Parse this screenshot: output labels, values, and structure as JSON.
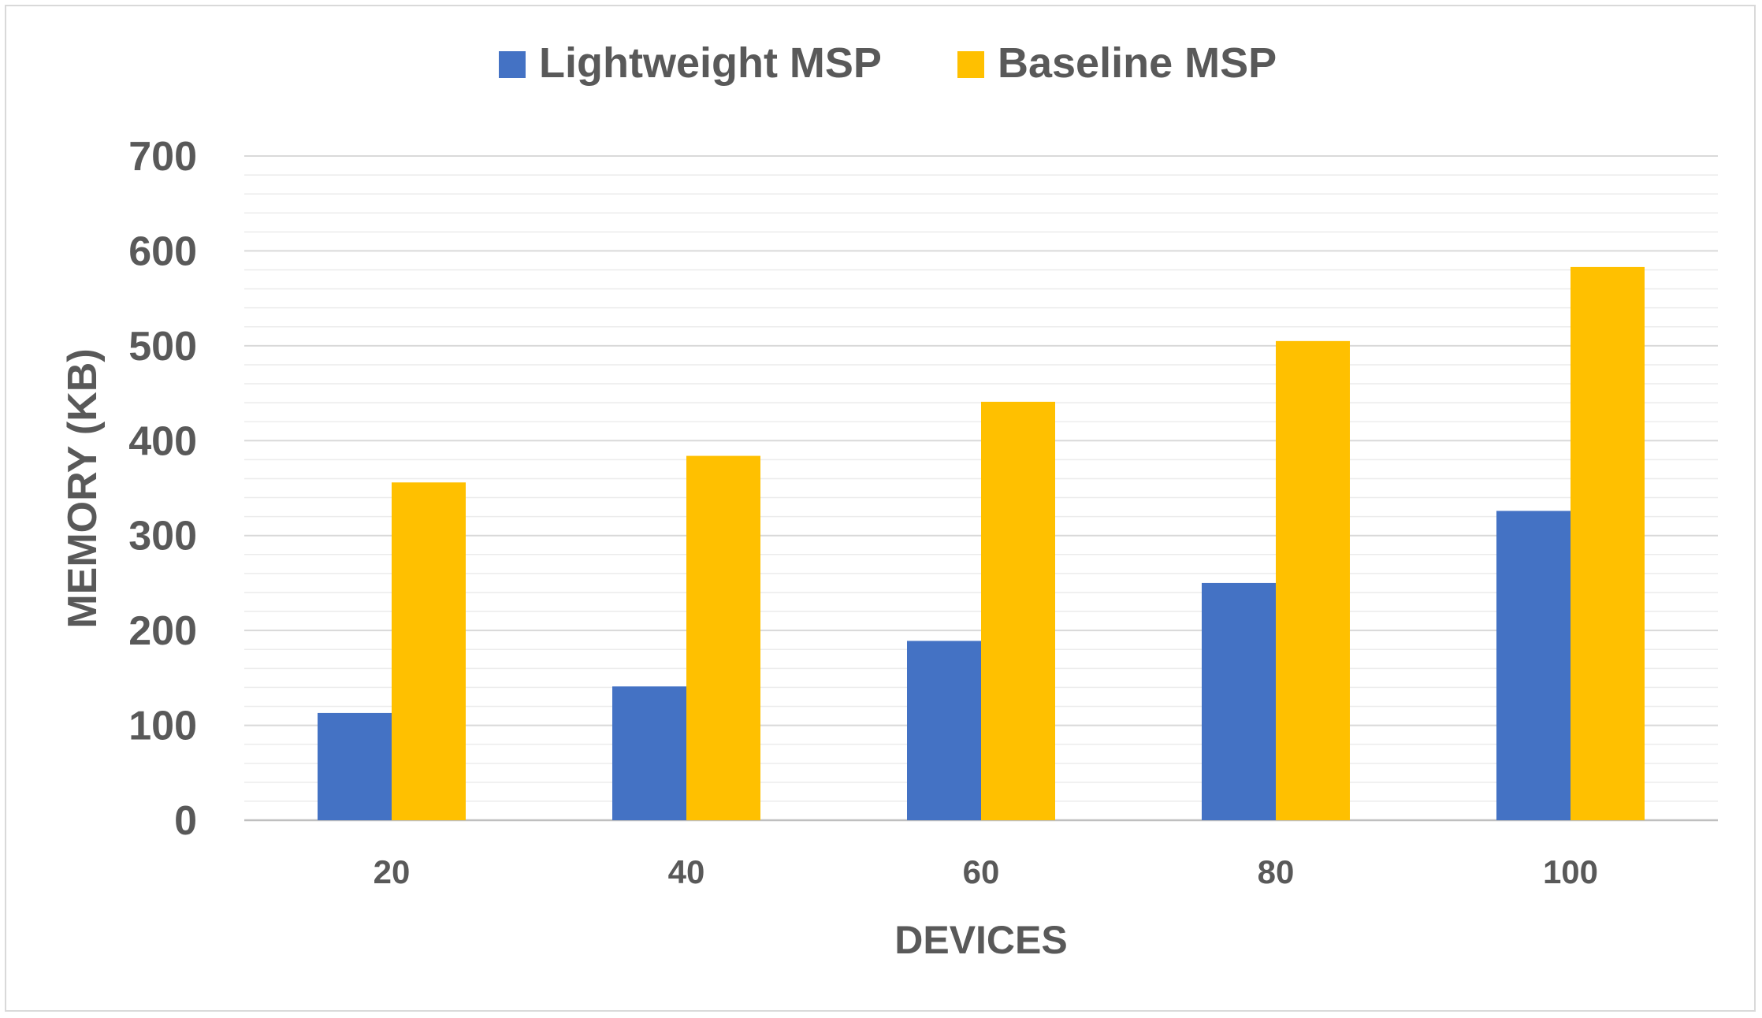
{
  "chart_data": {
    "type": "bar",
    "categories": [
      "20",
      "40",
      "60",
      "80",
      "100"
    ],
    "series": [
      {
        "name": "Lightweight MSP",
        "color": "#4472C4",
        "values": [
          113,
          141,
          189,
          250,
          326
        ]
      },
      {
        "name": "Baseline MSP",
        "color": "#FFC000",
        "values": [
          356,
          384,
          441,
          505,
          583
        ]
      }
    ],
    "xlabel": "DEVICES",
    "ylabel": "MEMORY (KB)",
    "ylim": [
      0,
      700
    ],
    "yticks": [
      "0",
      "100",
      "200",
      "300",
      "400",
      "500",
      "600",
      "700"
    ],
    "grid": true,
    "legend_position": "top-center"
  }
}
